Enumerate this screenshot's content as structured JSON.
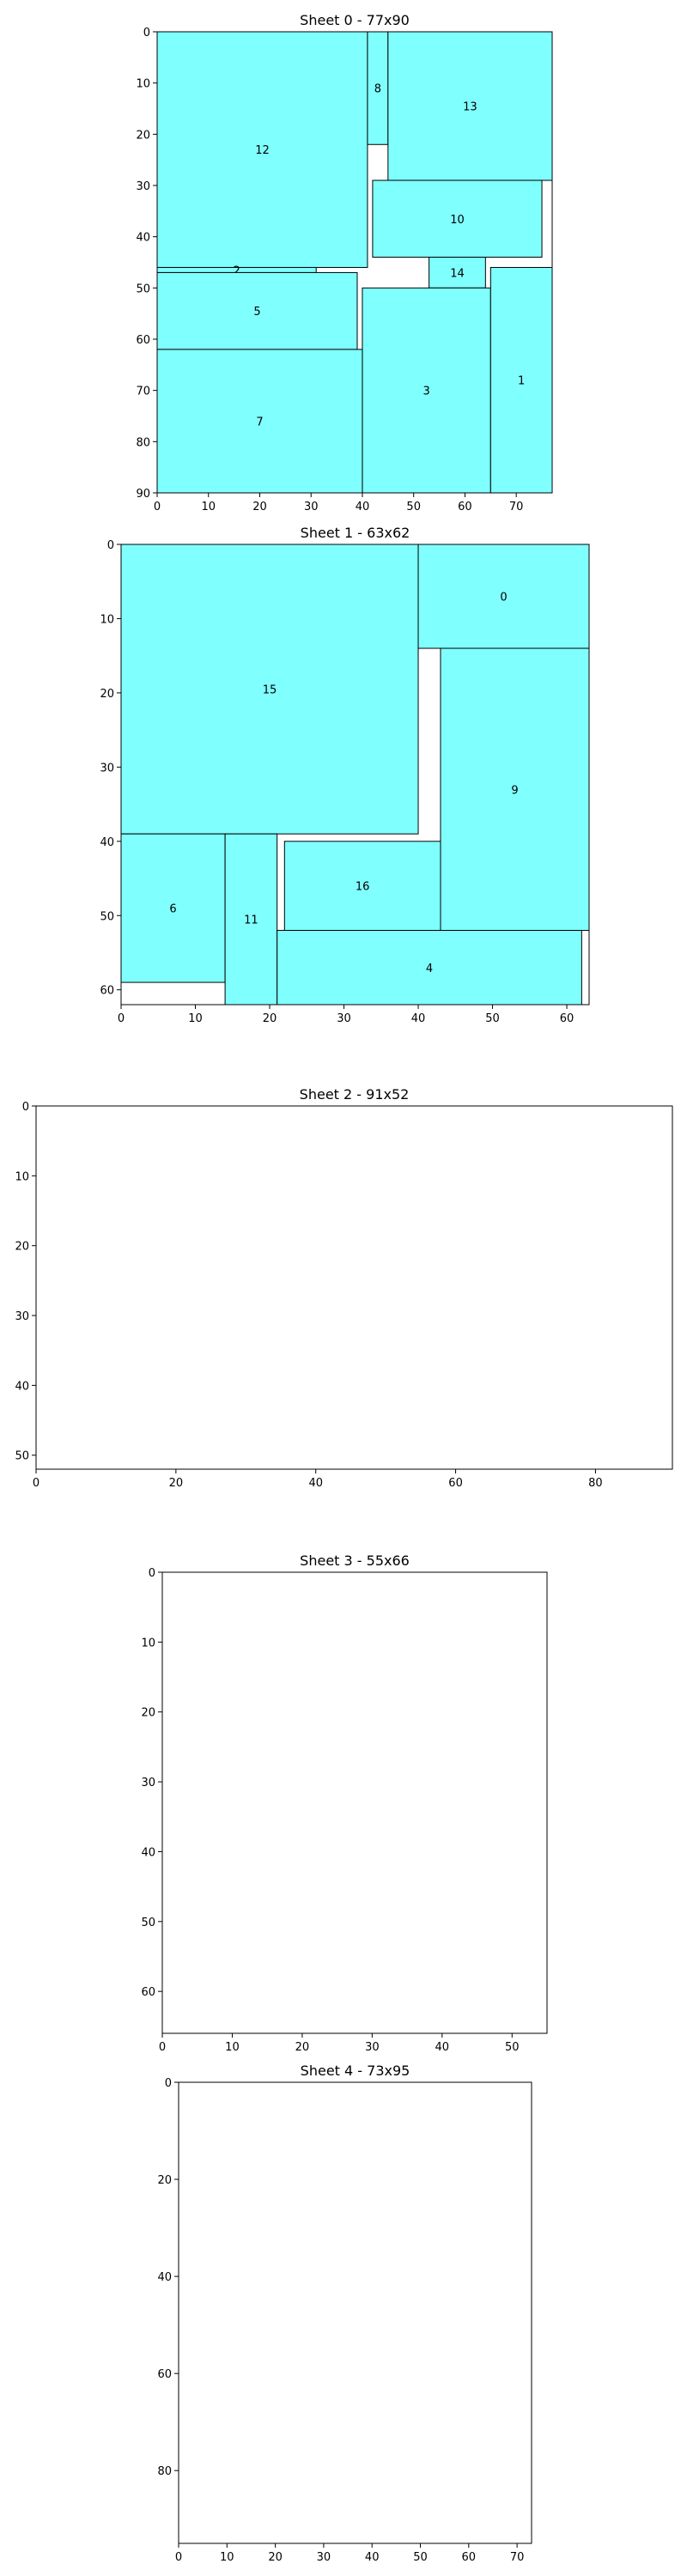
{
  "chart_data": [
    {
      "type": "rectangle-packing",
      "title": "Sheet 0 - 77x90",
      "xlim": [
        0,
        77
      ],
      "ylim": [
        0,
        90
      ],
      "y_inverted": true,
      "xticks": [
        0,
        10,
        20,
        30,
        40,
        50,
        60,
        70
      ],
      "yticks": [
        0,
        10,
        20,
        30,
        40,
        50,
        60,
        70,
        80,
        90
      ],
      "fill_color": "#80ffff",
      "edge_color": "#000000",
      "pieces": [
        {
          "label": "12",
          "x": 0,
          "y": 0,
          "w": 41,
          "h": 46
        },
        {
          "label": "8",
          "x": 41,
          "y": 0,
          "w": 4,
          "h": 22
        },
        {
          "label": "13",
          "x": 45,
          "y": 0,
          "w": 32,
          "h": 29
        },
        {
          "label": "10",
          "x": 42,
          "y": 29,
          "w": 33,
          "h": 15
        },
        {
          "label": "2",
          "x": 0,
          "y": 46,
          "w": 31,
          "h": 1
        },
        {
          "label": "14",
          "x": 53,
          "y": 44,
          "w": 11,
          "h": 6
        },
        {
          "label": "5",
          "x": 0,
          "y": 47,
          "w": 39,
          "h": 15
        },
        {
          "label": "3",
          "x": 40,
          "y": 50,
          "w": 25,
          "h": 40
        },
        {
          "label": "1",
          "x": 65,
          "y": 46,
          "w": 12,
          "h": 44
        },
        {
          "label": "7",
          "x": 0,
          "y": 62,
          "w": 40,
          "h": 28
        }
      ]
    },
    {
      "type": "rectangle-packing",
      "title": "Sheet 1 - 63x62",
      "xlim": [
        0,
        63
      ],
      "ylim": [
        0,
        62
      ],
      "y_inverted": true,
      "xticks": [
        0,
        10,
        20,
        30,
        40,
        50,
        60
      ],
      "yticks": [
        0,
        10,
        20,
        30,
        40,
        50,
        60
      ],
      "fill_color": "#80ffff",
      "edge_color": "#000000",
      "pieces": [
        {
          "label": "15",
          "x": 0,
          "y": 0,
          "w": 40,
          "h": 39
        },
        {
          "label": "0",
          "x": 40,
          "y": 0,
          "w": 23,
          "h": 14
        },
        {
          "label": "9",
          "x": 43,
          "y": 14,
          "w": 20,
          "h": 38
        },
        {
          "label": "6",
          "x": 0,
          "y": 39,
          "w": 14,
          "h": 20
        },
        {
          "label": "11",
          "x": 14,
          "y": 39,
          "w": 7,
          "h": 23
        },
        {
          "label": "16",
          "x": 22,
          "y": 40,
          "w": 21,
          "h": 12
        },
        {
          "label": "4",
          "x": 21,
          "y": 52,
          "w": 41,
          "h": 10
        }
      ]
    },
    {
      "type": "rectangle-packing",
      "title": "Sheet 2 - 91x52",
      "xlim": [
        0,
        91
      ],
      "ylim": [
        0,
        52
      ],
      "y_inverted": true,
      "xticks": [
        0,
        20,
        40,
        60,
        80
      ],
      "yticks": [
        0,
        10,
        20,
        30,
        40,
        50
      ],
      "fill_color": "#80ffff",
      "edge_color": "#000000",
      "pieces": []
    },
    {
      "type": "rectangle-packing",
      "title": "Sheet 3 - 55x66",
      "xlim": [
        0,
        55
      ],
      "ylim": [
        0,
        66
      ],
      "y_inverted": true,
      "xticks": [
        0,
        10,
        20,
        30,
        40,
        50
      ],
      "yticks": [
        0,
        10,
        20,
        30,
        40,
        50,
        60
      ],
      "fill_color": "#80ffff",
      "edge_color": "#000000",
      "pieces": []
    },
    {
      "type": "rectangle-packing",
      "title": "Sheet 4 - 73x95",
      "xlim": [
        0,
        73
      ],
      "ylim": [
        0,
        95
      ],
      "y_inverted": true,
      "xticks": [
        0,
        10,
        20,
        30,
        40,
        50,
        60,
        70
      ],
      "yticks": [
        0,
        20,
        40,
        60,
        80
      ],
      "fill_color": "#80ffff",
      "edge_color": "#000000",
      "pieces": []
    }
  ]
}
